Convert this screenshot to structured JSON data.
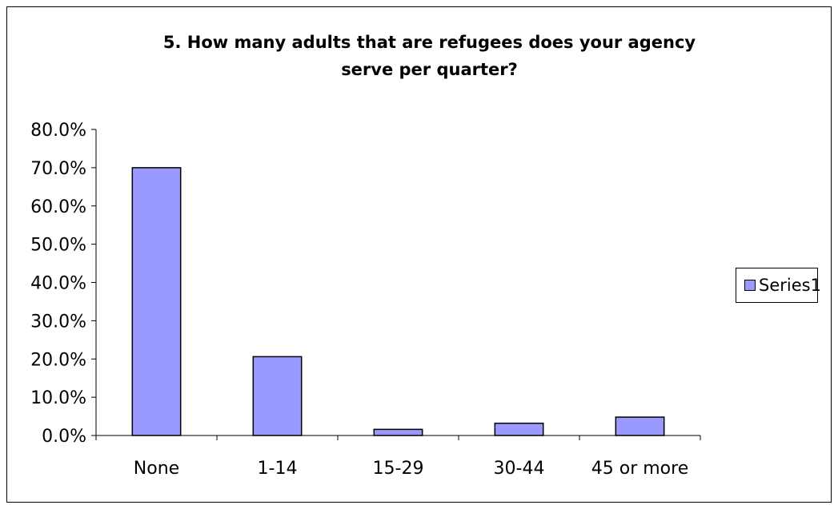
{
  "chart_data": {
    "type": "bar",
    "title": "5. How many adults that are refugees does your agency serve per quarter?",
    "title_lines": [
      "5. How many adults that are refugees does your agency",
      "serve per quarter?"
    ],
    "xlabel": "",
    "ylabel": "",
    "categories": [
      "None",
      "1-14",
      "15-29",
      "30-44",
      "45 or more"
    ],
    "series": [
      {
        "name": "Series1",
        "values": [
          70.0,
          20.6,
          1.6,
          3.2,
          4.8
        ],
        "color": "#9999ff"
      }
    ],
    "ylim": [
      0,
      80
    ],
    "ytick_labels": [
      "0.0%",
      "10.0%",
      "20.0%",
      "30.0%",
      "40.0%",
      "50.0%",
      "60.0%",
      "70.0%",
      "80.0%"
    ],
    "grid": false,
    "legend": "right",
    "bar_border_color": "#000000"
  }
}
